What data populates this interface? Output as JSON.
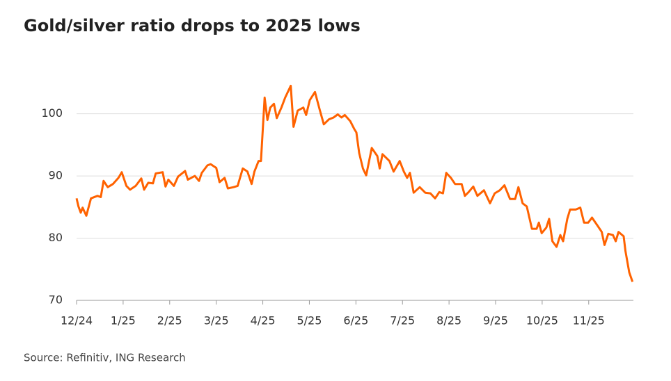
{
  "chart_data": {
    "type": "line",
    "title": "Gold/silver ratio drops to 2025 lows",
    "source": "Source: Refinitiv, ING Research",
    "color": "#ff6200",
    "grid": true,
    "xlim": [
      0,
      11.96
    ],
    "xticks": [
      {
        "value": 0,
        "label": "12/24"
      },
      {
        "value": 1,
        "label": "1/25"
      },
      {
        "value": 2,
        "label": "2/25"
      },
      {
        "value": 3,
        "label": "3/25"
      },
      {
        "value": 4,
        "label": "4/25"
      },
      {
        "value": 5,
        "label": "5/25"
      },
      {
        "value": 6,
        "label": "6/25"
      },
      {
        "value": 7,
        "label": "7/25"
      },
      {
        "value": 8,
        "label": "8/25"
      },
      {
        "value": 9,
        "label": "9/25"
      },
      {
        "value": 10,
        "label": "10/25"
      },
      {
        "value": 11,
        "label": "11/25"
      }
    ],
    "ylim": [
      70,
      107
    ],
    "yticks": [
      70,
      80,
      90,
      100
    ],
    "x": [
      0,
      0.04,
      0.09,
      0.13,
      0.21,
      0.31,
      0.45,
      0.52,
      0.58,
      0.67,
      0.78,
      0.9,
      0.97,
      1.07,
      1.15,
      1.27,
      1.39,
      1.45,
      1.54,
      1.64,
      1.7,
      1.85,
      1.91,
      1.97,
      2.09,
      2.18,
      2.33,
      2.39,
      2.54,
      2.63,
      2.69,
      2.81,
      2.88,
      3.0,
      3.07,
      3.18,
      3.25,
      3.37,
      3.46,
      3.57,
      3.67,
      3.76,
      3.82,
      3.91,
      3.96,
      4.04,
      4.1,
      4.16,
      4.24,
      4.3,
      4.4,
      4.48,
      4.6,
      4.66,
      4.75,
      4.87,
      4.93,
      5.01,
      5.12,
      5.22,
      5.31,
      5.42,
      5.52,
      5.61,
      5.69,
      5.76,
      5.88,
      5.96,
      6.01,
      6.07,
      6.15,
      6.22,
      6.34,
      6.46,
      6.51,
      6.57,
      6.72,
      6.81,
      6.94,
      7.03,
      7.1,
      7.16,
      7.24,
      7.37,
      7.49,
      7.6,
      7.7,
      7.79,
      7.87,
      7.94,
      8.04,
      8.13,
      8.27,
      8.34,
      8.42,
      8.52,
      8.61,
      8.75,
      8.88,
      8.98,
      9.09,
      9.19,
      9.31,
      9.42,
      9.49,
      9.58,
      9.67,
      9.78,
      9.88,
      9.93,
      9.99,
      10.09,
      10.15,
      10.22,
      10.31,
      10.39,
      10.45,
      10.54,
      10.6,
      10.72,
      10.82,
      10.9,
      10.99,
      11.07,
      11.19,
      11.28,
      11.34,
      11.42,
      11.52,
      11.58,
      11.64,
      11.75,
      11.79,
      11.87,
      11.94
    ],
    "values": [
      86.4,
      85.1,
      84.1,
      84.9,
      83.6,
      86.4,
      86.8,
      86.6,
      89.2,
      88.2,
      88.7,
      89.7,
      90.6,
      88.4,
      87.8,
      88.4,
      89.6,
      87.8,
      88.9,
      88.8,
      90.4,
      90.6,
      88.3,
      89.4,
      88.4,
      89.9,
      90.8,
      89.4,
      90.0,
      89.2,
      90.5,
      91.7,
      91.9,
      91.3,
      89.0,
      89.7,
      88.0,
      88.2,
      88.4,
      91.2,
      90.7,
      88.7,
      90.7,
      92.4,
      92.4,
      102.6,
      99.0,
      101.0,
      101.6,
      99.3,
      101.0,
      102.6,
      104.5,
      97.9,
      100.5,
      101.0,
      99.8,
      102.2,
      103.5,
      100.7,
      98.3,
      99.1,
      99.4,
      99.9,
      99.4,
      99.8,
      98.8,
      97.6,
      97.0,
      93.7,
      91.2,
      90.1,
      94.5,
      93.2,
      91.2,
      93.5,
      92.4,
      90.7,
      92.4,
      90.7,
      89.7,
      90.5,
      87.3,
      88.2,
      87.3,
      87.2,
      86.4,
      87.4,
      87.2,
      90.5,
      89.7,
      88.7,
      88.7,
      86.8,
      87.4,
      88.3,
      86.8,
      87.7,
      85.6,
      87.2,
      87.7,
      88.5,
      86.3,
      86.3,
      88.2,
      85.6,
      85.1,
      81.5,
      81.5,
      82.5,
      80.8,
      81.7,
      83.1,
      79.5,
      78.6,
      80.5,
      79.5,
      83.1,
      84.6,
      84.6,
      84.9,
      82.5,
      82.5,
      83.3,
      82.0,
      81.0,
      78.9,
      80.7,
      80.5,
      79.5,
      81.0,
      80.3,
      77.9,
      74.5,
      73.0
    ]
  }
}
